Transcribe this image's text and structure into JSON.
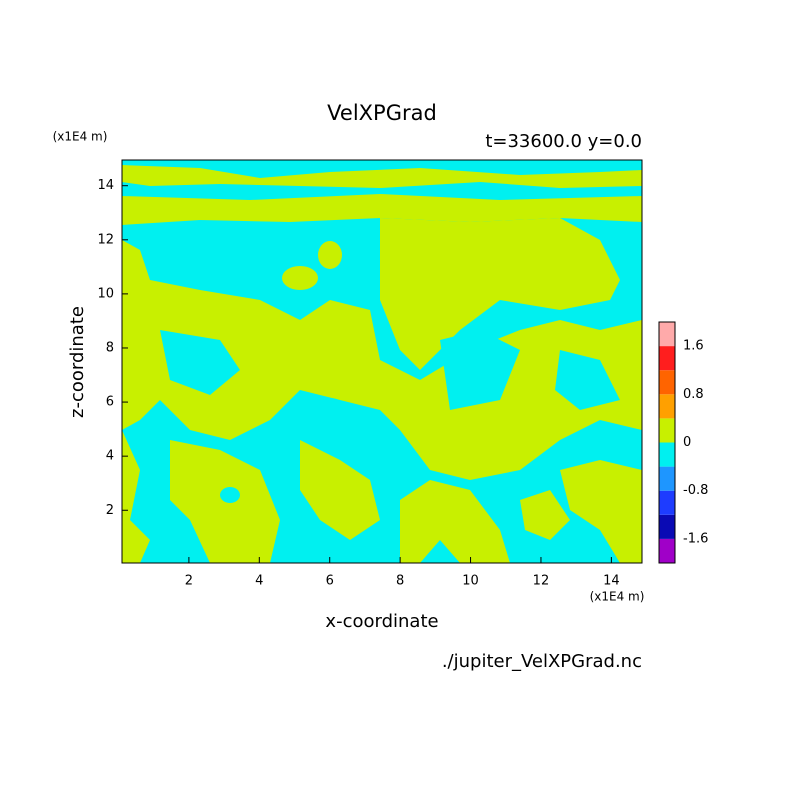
{
  "chart_data": {
    "type": "contour",
    "title": "VelXPGrad",
    "subtitle": "t=33600.0 y=0.0",
    "x_label": "x-coordinate",
    "y_label": "z-coordinate",
    "x_unit": "(x1E4 m)",
    "y_unit": "(x1E4 m)",
    "source": "./jupiter_VelXPGrad.nc",
    "xlim": [
      0.1,
      14.87
    ],
    "ylim": [
      0.05,
      14.95
    ],
    "xticks": [
      2,
      4,
      6,
      8,
      10,
      12,
      14
    ],
    "yticks": [
      2,
      4,
      6,
      8,
      10,
      12,
      14
    ],
    "colorbar": {
      "lim": [
        -2,
        2
      ],
      "levels": [
        -1.6,
        -1.2,
        -0.8,
        -0.4,
        0,
        0.4,
        0.8,
        1.2,
        1.6
      ],
      "colors": [
        "#a000c8",
        "#0a0ab4",
        "#1e3cff",
        "#1e96ff",
        "#00f0f0",
        "#c8f000",
        "#ffa000",
        "#ff6400",
        "#ff1e1e",
        "#ffaaaa"
      ],
      "ticks": [
        -1.6,
        -0.8,
        0,
        0.8,
        1.6
      ]
    }
  }
}
